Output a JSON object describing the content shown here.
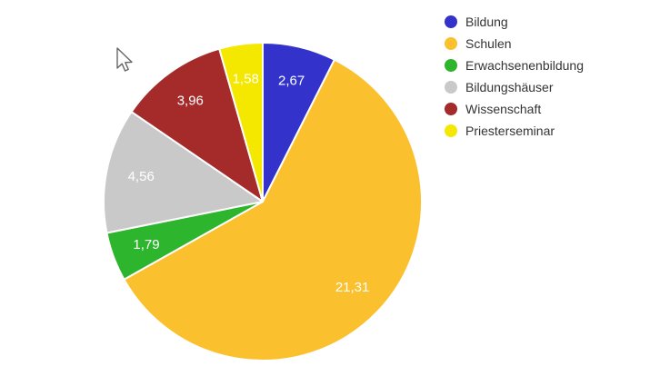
{
  "chart_data": {
    "type": "pie",
    "title": "",
    "legend_position": "right",
    "start_angle_deg": 0,
    "direction": "clockwise",
    "label_color": "#ffffff",
    "slice_border_color": "#ffffff",
    "slices": [
      {
        "label": "Bildung",
        "value": 2.67,
        "display": "2,67",
        "color": "#3333cc"
      },
      {
        "label": "Schulen",
        "value": 21.31,
        "display": "21,31",
        "color": "#fbc02d"
      },
      {
        "label": "Erwachsenenbildung",
        "value": 1.79,
        "display": "1,79",
        "color": "#2db52d"
      },
      {
        "label": "Bildungshäuser",
        "value": 4.56,
        "display": "4,56",
        "color": "#c9c9c9"
      },
      {
        "label": "Wissenschaft",
        "value": 3.96,
        "display": "3,96",
        "color": "#a52a2a"
      },
      {
        "label": "Priesterseminar",
        "value": 1.58,
        "display": "1,58",
        "color": "#f5e800"
      }
    ]
  },
  "legend": {
    "items": [
      {
        "label": "Bildung"
      },
      {
        "label": "Schulen"
      },
      {
        "label": "Erwachsenenbildung"
      },
      {
        "label": "Bildungshäuser"
      },
      {
        "label": "Wissenschaft"
      },
      {
        "label": "Priesterseminar"
      }
    ],
    "text_color": "#333333"
  }
}
